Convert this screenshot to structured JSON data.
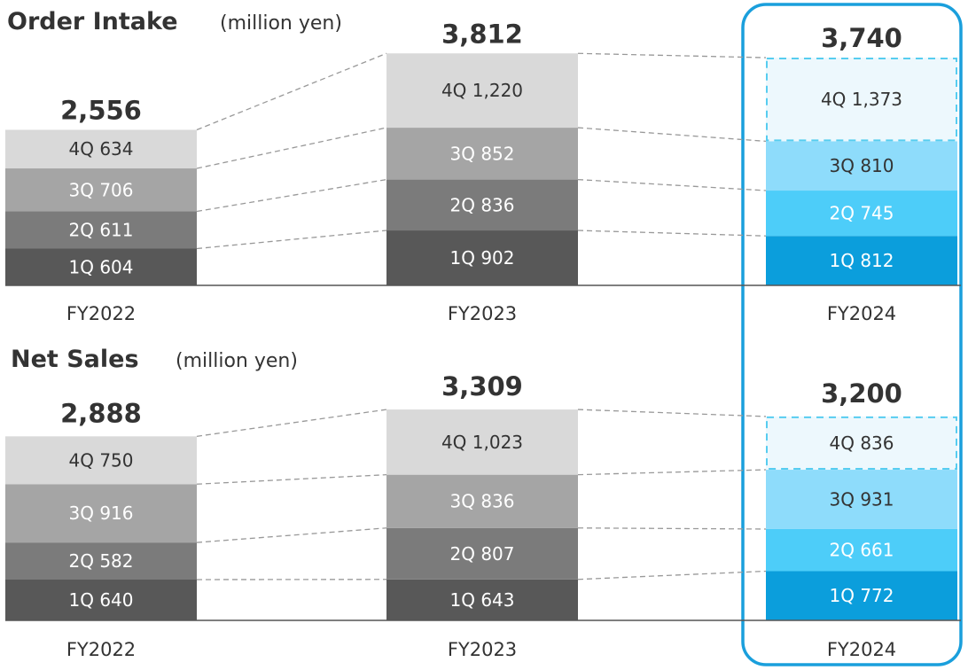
{
  "colors": {
    "q1": "#585858",
    "q2": "#7b7b7b",
    "q3": "#a5a5a5",
    "q4": "#d9d9d9",
    "q1_2024": "#0b9edc",
    "q2_2024": "#4dcdf9",
    "q3_2024": "#8edcfb",
    "q4_2024": "#edf8fd",
    "frame": "#1a9fdc",
    "dashed": "#57cdf0",
    "axis": "#555555",
    "connector": "#999999"
  },
  "chart_data": [
    {
      "type": "bar",
      "stacked": true,
      "title": "Order Intake",
      "unit": "(million yen)",
      "categories": [
        "FY2022",
        "FY2023",
        "FY2024"
      ],
      "totals": [
        "2,556",
        "3,812",
        "3,740"
      ],
      "series": [
        {
          "name": "1Q",
          "values": [
            604,
            902,
            812
          ]
        },
        {
          "name": "2Q",
          "values": [
            611,
            836,
            745
          ]
        },
        {
          "name": "3Q",
          "values": [
            706,
            852,
            810
          ]
        },
        {
          "name": "4Q",
          "values": [
            634,
            1220,
            1373
          ]
        }
      ],
      "segment_labels": [
        [
          "1Q 604",
          "1Q 902",
          "1Q 812"
        ],
        [
          "2Q 611",
          "2Q 836",
          "2Q 745"
        ],
        [
          "3Q 706",
          "3Q 852",
          "3Q 810"
        ],
        [
          "4Q 634",
          "4Q 1,220",
          "4Q 1,373"
        ]
      ]
    },
    {
      "type": "bar",
      "stacked": true,
      "title": "Net Sales",
      "unit": "(million yen)",
      "categories": [
        "FY2022",
        "FY2023",
        "FY2024"
      ],
      "totals": [
        "2,888",
        "3,309",
        "3,200"
      ],
      "series": [
        {
          "name": "1Q",
          "values": [
            640,
            643,
            772
          ]
        },
        {
          "name": "2Q",
          "values": [
            582,
            807,
            661
          ]
        },
        {
          "name": "3Q",
          "values": [
            916,
            836,
            931
          ]
        },
        {
          "name": "4Q",
          "values": [
            750,
            1023,
            836
          ]
        }
      ],
      "segment_labels": [
        [
          "1Q 640",
          "1Q 643",
          "1Q 772"
        ],
        [
          "2Q 582",
          "2Q 807",
          "2Q 661"
        ],
        [
          "3Q 916",
          "3Q 836",
          "3Q 931"
        ],
        [
          "4Q 750",
          "4Q 1,023",
          "4Q 836"
        ]
      ]
    }
  ]
}
